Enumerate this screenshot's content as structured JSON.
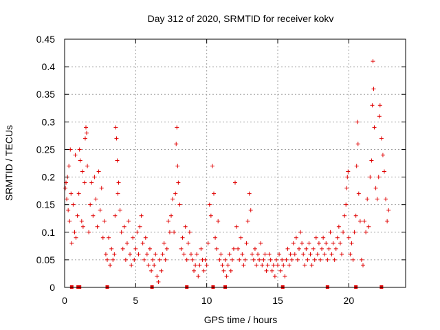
{
  "chart_data": {
    "type": "scatter",
    "title": "Day 312 of 2020, SRMTID for receiver kokv",
    "xlabel": "GPS time / hours",
    "ylabel": "SRMTID / TECUs",
    "xlim": [
      0,
      24
    ],
    "ylim": [
      0,
      0.45
    ],
    "grid": true,
    "x_ticks": [
      0,
      5,
      10,
      15,
      20
    ],
    "x_tick_labels": [
      "0",
      "5",
      "10",
      "15",
      "20"
    ],
    "y_ticks": [
      0,
      0.05,
      0.1,
      0.15,
      0.2,
      0.25,
      0.3,
      0.35,
      0.4,
      0.45
    ],
    "y_tick_labels": [
      "0",
      "0.05",
      "0.1",
      "0.15",
      "0.2",
      "0.25",
      "0.3",
      "0.35",
      "0.4",
      "0.45"
    ],
    "series": [
      {
        "name": "SRMTID",
        "marker": "+",
        "color": "#e00000",
        "points": [
          [
            0.05,
            0.18
          ],
          [
            0.1,
            0.19
          ],
          [
            0.15,
            0.16
          ],
          [
            0.2,
            0.2
          ],
          [
            0.25,
            0.14
          ],
          [
            0.3,
            0.22
          ],
          [
            0.35,
            0.12
          ],
          [
            0.4,
            0.25
          ],
          [
            0.45,
            0.17
          ],
          [
            0.5,
            0.08
          ],
          [
            0.6,
            0.15
          ],
          [
            0.7,
            0.1
          ],
          [
            0.75,
            0.24
          ],
          [
            0.8,
            0.09
          ],
          [
            0.9,
            0.13
          ],
          [
            1.0,
            0.17
          ],
          [
            1.05,
            0.25
          ],
          [
            1.1,
            0.23
          ],
          [
            1.2,
            0.12
          ],
          [
            1.25,
            0.21
          ],
          [
            1.3,
            0.11
          ],
          [
            1.4,
            0.19
          ],
          [
            1.45,
            0.27
          ],
          [
            1.5,
            0.29
          ],
          [
            1.55,
            0.28
          ],
          [
            1.6,
            0.22
          ],
          [
            1.7,
            0.1
          ],
          [
            1.8,
            0.15
          ],
          [
            1.9,
            0.19
          ],
          [
            2.0,
            0.13
          ],
          [
            2.1,
            0.2
          ],
          [
            2.2,
            0.16
          ],
          [
            2.3,
            0.11
          ],
          [
            2.4,
            0.21
          ],
          [
            2.5,
            0.14
          ],
          [
            2.6,
            0.18
          ],
          [
            2.7,
            0.09
          ],
          [
            2.8,
            0.12
          ],
          [
            2.9,
            0.06
          ],
          [
            3.0,
            0.05
          ],
          [
            3.1,
            0.09
          ],
          [
            3.2,
            0.04
          ],
          [
            3.3,
            0.07
          ],
          [
            3.4,
            0.05
          ],
          [
            3.5,
            0.06
          ],
          [
            3.55,
            0.13
          ],
          [
            3.6,
            0.29
          ],
          [
            3.65,
            0.27
          ],
          [
            3.7,
            0.23
          ],
          [
            3.75,
            0.17
          ],
          [
            3.8,
            0.19
          ],
          [
            3.9,
            0.14
          ],
          [
            4.0,
            0.1
          ],
          [
            4.1,
            0.07
          ],
          [
            4.2,
            0.11
          ],
          [
            4.3,
            0.05
          ],
          [
            4.4,
            0.08
          ],
          [
            4.5,
            0.12
          ],
          [
            4.6,
            0.06
          ],
          [
            4.7,
            0.04
          ],
          [
            4.8,
            0.09
          ],
          [
            4.9,
            0.05
          ],
          [
            5.0,
            0.07
          ],
          [
            5.1,
            0.1
          ],
          [
            5.2,
            0.06
          ],
          [
            5.3,
            0.11
          ],
          [
            5.4,
            0.13
          ],
          [
            5.5,
            0.08
          ],
          [
            5.6,
            0.05
          ],
          [
            5.7,
            0.09
          ],
          [
            5.8,
            0.06
          ],
          [
            5.9,
            0.04
          ],
          [
            6.0,
            0.07
          ],
          [
            6.1,
            0.03
          ],
          [
            6.2,
            0.05
          ],
          [
            6.3,
            0.04
          ],
          [
            6.4,
            0.06
          ],
          [
            6.5,
            0.02
          ],
          [
            6.6,
            0.01
          ],
          [
            6.7,
            0.05
          ],
          [
            6.8,
            0.03
          ],
          [
            6.9,
            0.06
          ],
          [
            7.0,
            0.08
          ],
          [
            7.1,
            0.05
          ],
          [
            7.2,
            0.07
          ],
          [
            7.3,
            0.12
          ],
          [
            7.4,
            0.1
          ],
          [
            7.5,
            0.13
          ],
          [
            7.6,
            0.16
          ],
          [
            7.7,
            0.1
          ],
          [
            7.8,
            0.17
          ],
          [
            7.85,
            0.26
          ],
          [
            7.9,
            0.29
          ],
          [
            7.95,
            0.22
          ],
          [
            8.0,
            0.19
          ],
          [
            8.1,
            0.15
          ],
          [
            8.2,
            0.07
          ],
          [
            8.3,
            0.09
          ],
          [
            8.4,
            0.06
          ],
          [
            8.5,
            0.11
          ],
          [
            8.6,
            0.05
          ],
          [
            8.7,
            0.08
          ],
          [
            8.8,
            0.1
          ],
          [
            8.9,
            0.06
          ],
          [
            9.0,
            0.05
          ],
          [
            9.1,
            0.03
          ],
          [
            9.2,
            0.04
          ],
          [
            9.3,
            0.06
          ],
          [
            9.4,
            0.02
          ],
          [
            9.5,
            0.04
          ],
          [
            9.6,
            0.07
          ],
          [
            9.7,
            0.05
          ],
          [
            9.8,
            0.03
          ],
          [
            9.9,
            0.05
          ],
          [
            10.0,
            0.04
          ],
          [
            10.1,
            0.08
          ],
          [
            10.2,
            0.15
          ],
          [
            10.3,
            0.13
          ],
          [
            10.4,
            0.22
          ],
          [
            10.5,
            0.17
          ],
          [
            10.6,
            0.09
          ],
          [
            10.7,
            0.07
          ],
          [
            10.8,
            0.12
          ],
          [
            10.9,
            0.05
          ],
          [
            11.0,
            0.06
          ],
          [
            11.1,
            0.04
          ],
          [
            11.2,
            0.03
          ],
          [
            11.3,
            0.05
          ],
          [
            11.4,
            0.02
          ],
          [
            11.5,
            0.04
          ],
          [
            11.6,
            0.06
          ],
          [
            11.7,
            0.03
          ],
          [
            11.8,
            0.05
          ],
          [
            11.9,
            0.07
          ],
          [
            12.0,
            0.19
          ],
          [
            12.1,
            0.11
          ],
          [
            12.2,
            0.07
          ],
          [
            12.3,
            0.05
          ],
          [
            12.4,
            0.09
          ],
          [
            12.5,
            0.06
          ],
          [
            12.6,
            0.04
          ],
          [
            12.7,
            0.05
          ],
          [
            12.8,
            0.08
          ],
          [
            12.9,
            0.12
          ],
          [
            13.0,
            0.17
          ],
          [
            13.1,
            0.14
          ],
          [
            13.2,
            0.06
          ],
          [
            13.3,
            0.05
          ],
          [
            13.4,
            0.07
          ],
          [
            13.5,
            0.04
          ],
          [
            13.6,
            0.06
          ],
          [
            13.7,
            0.05
          ],
          [
            13.8,
            0.08
          ],
          [
            13.9,
            0.04
          ],
          [
            14.0,
            0.05
          ],
          [
            14.1,
            0.06
          ],
          [
            14.2,
            0.03
          ],
          [
            14.3,
            0.04
          ],
          [
            14.4,
            0.06
          ],
          [
            14.5,
            0.05
          ],
          [
            14.6,
            0.03
          ],
          [
            14.7,
            0.04
          ],
          [
            14.8,
            0.02
          ],
          [
            14.9,
            0.05
          ],
          [
            15.0,
            0.04
          ],
          [
            15.1,
            0.06
          ],
          [
            15.2,
            0.03
          ],
          [
            15.3,
            0.05
          ],
          [
            15.4,
            0.04
          ],
          [
            15.5,
            0.02
          ],
          [
            15.6,
            0.05
          ],
          [
            15.7,
            0.07
          ],
          [
            15.8,
            0.04
          ],
          [
            15.9,
            0.06
          ],
          [
            16.0,
            0.05
          ],
          [
            16.1,
            0.08
          ],
          [
            16.2,
            0.06
          ],
          [
            16.3,
            0.09
          ],
          [
            16.4,
            0.05
          ],
          [
            16.5,
            0.07
          ],
          [
            16.6,
            0.1
          ],
          [
            16.7,
            0.08
          ],
          [
            16.8,
            0.06
          ],
          [
            16.9,
            0.04
          ],
          [
            17.0,
            0.07
          ],
          [
            17.1,
            0.05
          ],
          [
            17.2,
            0.08
          ],
          [
            17.3,
            0.06
          ],
          [
            17.4,
            0.04
          ],
          [
            17.5,
            0.07
          ],
          [
            17.6,
            0.05
          ],
          [
            17.7,
            0.09
          ],
          [
            17.8,
            0.06
          ],
          [
            17.9,
            0.08
          ],
          [
            18.0,
            0.05
          ],
          [
            18.1,
            0.07
          ],
          [
            18.2,
            0.09
          ],
          [
            18.3,
            0.06
          ],
          [
            18.4,
            0.08
          ],
          [
            18.5,
            0.05
          ],
          [
            18.6,
            0.07
          ],
          [
            18.7,
            0.1
          ],
          [
            18.8,
            0.06
          ],
          [
            18.9,
            0.08
          ],
          [
            19.0,
            0.05
          ],
          [
            19.1,
            0.07
          ],
          [
            19.2,
            0.09
          ],
          [
            19.3,
            0.11
          ],
          [
            19.4,
            0.08
          ],
          [
            19.5,
            0.06
          ],
          [
            19.6,
            0.1
          ],
          [
            19.7,
            0.13
          ],
          [
            19.8,
            0.15
          ],
          [
            19.85,
            0.18
          ],
          [
            19.9,
            0.2
          ],
          [
            19.95,
            0.21
          ],
          [
            20.0,
            0.09
          ],
          [
            20.1,
            0.06
          ],
          [
            20.2,
            0.08
          ],
          [
            20.3,
            0.05
          ],
          [
            20.4,
            0.1
          ],
          [
            20.5,
            0.13
          ],
          [
            20.55,
            0.22
          ],
          [
            20.6,
            0.3
          ],
          [
            20.65,
            0.26
          ],
          [
            20.7,
            0.17
          ],
          [
            20.8,
            0.12
          ],
          [
            20.9,
            0.05
          ],
          [
            21.0,
            0.04
          ],
          [
            21.1,
            0.12
          ],
          [
            21.2,
            0.1
          ],
          [
            21.3,
            0.16
          ],
          [
            21.4,
            0.11
          ],
          [
            21.5,
            0.2
          ],
          [
            21.6,
            0.23
          ],
          [
            21.65,
            0.33
          ],
          [
            21.7,
            0.41
          ],
          [
            21.75,
            0.36
          ],
          [
            21.8,
            0.29
          ],
          [
            21.9,
            0.18
          ],
          [
            22.0,
            0.16
          ],
          [
            22.1,
            0.2
          ],
          [
            22.15,
            0.31
          ],
          [
            22.2,
            0.33
          ],
          [
            22.3,
            0.27
          ],
          [
            22.4,
            0.24
          ],
          [
            22.5,
            0.21
          ],
          [
            22.6,
            0.16
          ],
          [
            22.7,
            0.12
          ],
          [
            22.8,
            0.14
          ]
        ]
      }
    ],
    "gap_markers_x": [
      0.5,
      0.95,
      1.05,
      3.0,
      6.15,
      8.6,
      10.45,
      11.3,
      15.35,
      18.5,
      20.5,
      22.3
    ]
  }
}
